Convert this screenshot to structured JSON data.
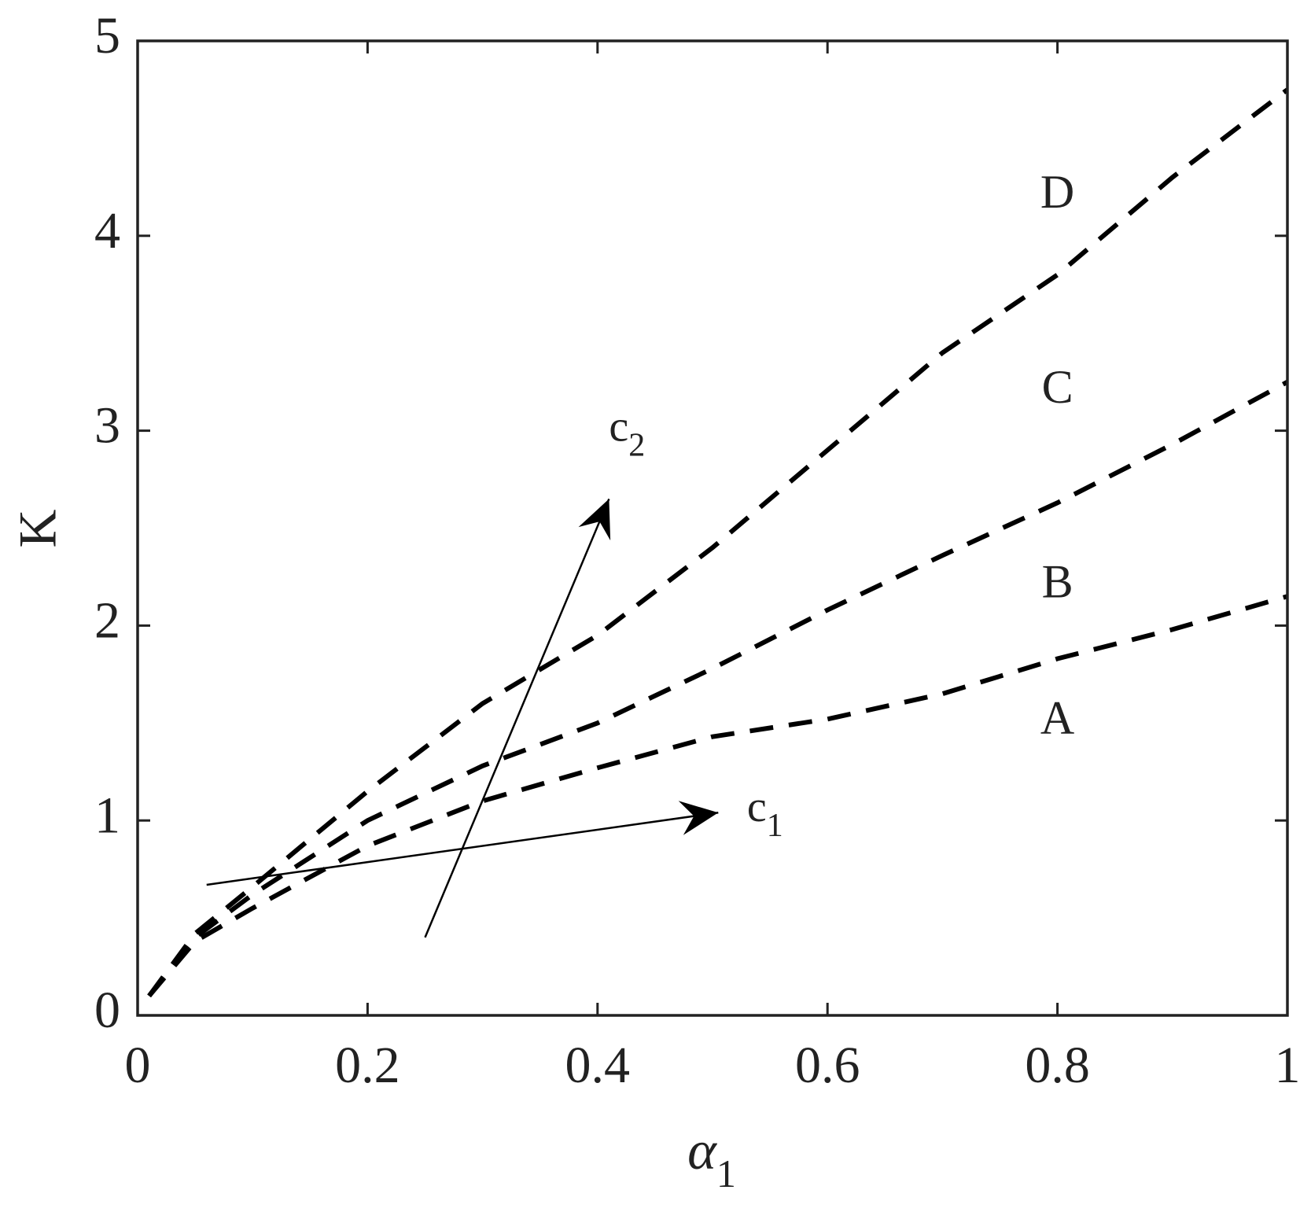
{
  "chart_data": {
    "type": "line",
    "xlabel": {
      "symbol": "α",
      "subscript": "1"
    },
    "ylabel": "K",
    "x": [
      0.01,
      0.05,
      0.1,
      0.2,
      0.3,
      0.4,
      0.5,
      0.6,
      0.7,
      0.8,
      0.9,
      1.0
    ],
    "series": [
      {
        "color": "#000000",
        "values": [
          0.1,
          0.38,
          0.55,
          0.87,
          1.1,
          1.27,
          1.43,
          1.52,
          1.65,
          1.83,
          1.98,
          2.15
        ]
      },
      {
        "color": "#000000",
        "values": [
          0.1,
          0.4,
          0.62,
          1.0,
          1.28,
          1.5,
          1.78,
          2.08,
          2.36,
          2.63,
          2.93,
          3.25
        ]
      },
      {
        "color": "#000000",
        "values": [
          0.1,
          0.42,
          0.66,
          1.15,
          1.6,
          1.95,
          2.4,
          2.9,
          3.4,
          3.8,
          4.3,
          4.75
        ]
      }
    ],
    "annotations": [
      {
        "text": "A",
        "x": 0.8,
        "y": 1.5
      },
      {
        "text": "B",
        "x": 0.8,
        "y": 2.2
      },
      {
        "text": "C",
        "x": 0.8,
        "y": 3.2
      },
      {
        "text": "D",
        "x": 0.8,
        "y": 4.2
      }
    ],
    "arrows": [
      {
        "text": "c",
        "subscript": "1",
        "x0": 0.06,
        "y0": 0.67,
        "x1": 0.505,
        "y1": 1.04,
        "label_x": 0.53,
        "label_y": 1.05
      },
      {
        "text": "c",
        "subscript": "2",
        "x0": 0.25,
        "y0": 0.4,
        "x1": 0.41,
        "y1": 2.65,
        "label_x": 0.41,
        "label_y": 3.0
      }
    ],
    "xlim": [
      0,
      1
    ],
    "ylim": [
      0,
      5
    ],
    "xticks": [
      0,
      0.2,
      0.4,
      0.6,
      0.8,
      1
    ],
    "yticks": [
      0,
      1,
      2,
      3,
      4,
      5
    ],
    "grid": false
  }
}
